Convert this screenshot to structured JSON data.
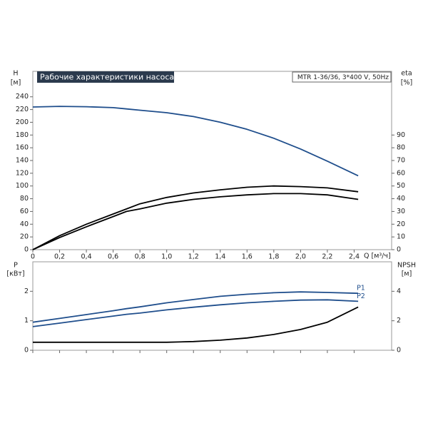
{
  "chart_data": [
    {
      "type": "line",
      "title": "Рабочие характеристики насоса",
      "subtitle": "MTR 1-36/36, 3*400 V, 50Hz",
      "y_label": "H",
      "y_unit": "[м]",
      "y2_label": "eta",
      "y2_unit": "[%]",
      "x_label": "Q [м³/ч]",
      "x": [
        0,
        0.2,
        0.4,
        0.6,
        0.7,
        0.8,
        1.0,
        1.2,
        1.4,
        1.6,
        1.8,
        2.0,
        2.2,
        2.43
      ],
      "xlim": [
        0,
        2.68
      ],
      "xticks": [
        0,
        {
          "value": 0.2,
          "label": "0,2"
        },
        {
          "value": 0.4,
          "label": "0,4"
        },
        {
          "value": 0.6,
          "label": "0,6"
        },
        {
          "value": 0.8,
          "label": "0,8"
        },
        {
          "value": 1.0,
          "label": "1,0"
        },
        {
          "value": 1.2,
          "label": "1,2"
        },
        {
          "value": 1.4,
          "label": "1,4"
        },
        {
          "value": 1.6,
          "label": "1,6"
        },
        {
          "value": 1.8,
          "label": "1,8"
        },
        {
          "value": 2.0,
          "label": "2,0"
        },
        {
          "value": 2.2,
          "label": "2,2"
        },
        {
          "value": 2.4,
          "label": "2,4"
        }
      ],
      "ylim": [
        0,
        280
      ],
      "yticks": [
        0,
        20,
        40,
        60,
        80,
        100,
        120,
        140,
        160,
        180,
        200,
        220,
        240
      ],
      "y2lim": [
        0,
        140
      ],
      "y2ticks": [
        0,
        10,
        20,
        30,
        40,
        50,
        60,
        70,
        80,
        90
      ],
      "series": [
        {
          "color": "#1f4e8c",
          "values": [
            224,
            225,
            224.5,
            223,
            221,
            219,
            215,
            209,
            200,
            189,
            175,
            158,
            139,
            116
          ]
        },
        {
          "color": "#000000",
          "axis": "y2",
          "values": [
            0,
            11,
            20,
            28,
            32,
            36,
            41,
            44.5,
            47,
            49,
            50,
            49.5,
            48.5,
            45.5
          ]
        },
        {
          "color": "#000000",
          "axis": "y2",
          "values": [
            0,
            9.5,
            18,
            26,
            30,
            32,
            36.5,
            39.5,
            41.5,
            43,
            44,
            44,
            43,
            39.5
          ]
        }
      ]
    },
    {
      "type": "line",
      "y_label": "P",
      "y_unit": "[кВт]",
      "y2_label": "NPSH",
      "y2_unit": "[м]",
      "x": [
        0,
        0.2,
        0.4,
        0.6,
        0.7,
        0.8,
        1.0,
        1.2,
        1.4,
        1.6,
        1.8,
        2.0,
        2.2,
        2.43
      ],
      "xlim": [
        0,
        2.68
      ],
      "xticks": [
        0,
        0.2,
        0.4,
        0.6,
        0.8,
        1.0,
        1.2,
        1.4,
        1.6,
        1.8,
        2.0,
        2.2,
        2.4
      ],
      "ylim": [
        0,
        3
      ],
      "yticks": [
        0,
        1,
        2
      ],
      "y2lim": [
        0,
        6
      ],
      "y2ticks": [
        0,
        2,
        4
      ],
      "series": [
        {
          "name": "P1",
          "color": "#1f4e8c",
          "values": [
            0.95,
            1.08,
            1.21,
            1.34,
            1.41,
            1.47,
            1.61,
            1.72,
            1.83,
            1.9,
            1.95,
            1.98,
            1.96,
            1.93
          ]
        },
        {
          "name": "P2",
          "color": "#1f4e8c",
          "values": [
            0.8,
            0.92,
            1.04,
            1.16,
            1.22,
            1.26,
            1.37,
            1.46,
            1.54,
            1.61,
            1.66,
            1.7,
            1.71,
            1.66
          ]
        },
        {
          "color": "#000000",
          "axis": "y2",
          "values": [
            0.54,
            0.54,
            0.54,
            0.54,
            0.54,
            0.54,
            0.54,
            0.59,
            0.68,
            0.83,
            1.07,
            1.41,
            1.9,
            2.93
          ]
        }
      ]
    }
  ]
}
